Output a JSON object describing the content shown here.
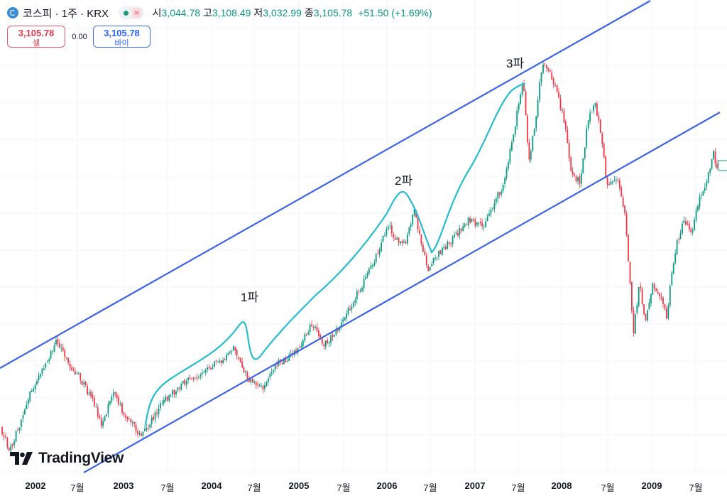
{
  "header": {
    "title": "코스피 · 1주 · KRX",
    "wave_symbol": "≈",
    "open_label": "시",
    "open": "3,044.78",
    "high_label": "고",
    "high": "3,108.49",
    "low_label": "저",
    "low": "3,032.99",
    "close_label": "종",
    "close": "3,105.78",
    "change": "+51.50 (+1.69%)"
  },
  "trade": {
    "sell_price": "3,105.78",
    "sell_label": "셀",
    "spread": "0.00",
    "buy_price": "3,105.78",
    "buy_label": "바이"
  },
  "brand": {
    "name": "TradingView"
  },
  "colors": {
    "up": "#089981",
    "down": "#f23645",
    "channel": "#3d63e6",
    "wave_path": "#26bcd0"
  },
  "chart_data": {
    "type": "candlestick-weekly",
    "x_ticks": [
      {
        "label": "2002",
        "year": true
      },
      {
        "label": "7월",
        "year": false
      },
      {
        "label": "2003",
        "year": true
      },
      {
        "label": "7월",
        "year": false
      },
      {
        "label": "2004",
        "year": true
      },
      {
        "label": "7월",
        "year": false
      },
      {
        "label": "2005",
        "year": true
      },
      {
        "label": "7월",
        "year": false
      },
      {
        "label": "2006",
        "year": true
      },
      {
        "label": "7월",
        "year": false
      },
      {
        "label": "2007",
        "year": true
      },
      {
        "label": "7월",
        "year": false
      },
      {
        "label": "2008",
        "year": true
      },
      {
        "label": "7월",
        "year": false
      },
      {
        "label": "2009",
        "year": true
      },
      {
        "label": "7월",
        "year": false
      }
    ],
    "x_range": [
      "2001-09",
      "2009-10"
    ],
    "wave_annotations": [
      {
        "label": "1파",
        "time": "2004-05"
      },
      {
        "label": "2파",
        "time": "2006-04"
      },
      {
        "label": "3파",
        "time": "2007-08"
      }
    ],
    "channel_lines": [
      "upper",
      "lower"
    ]
  }
}
